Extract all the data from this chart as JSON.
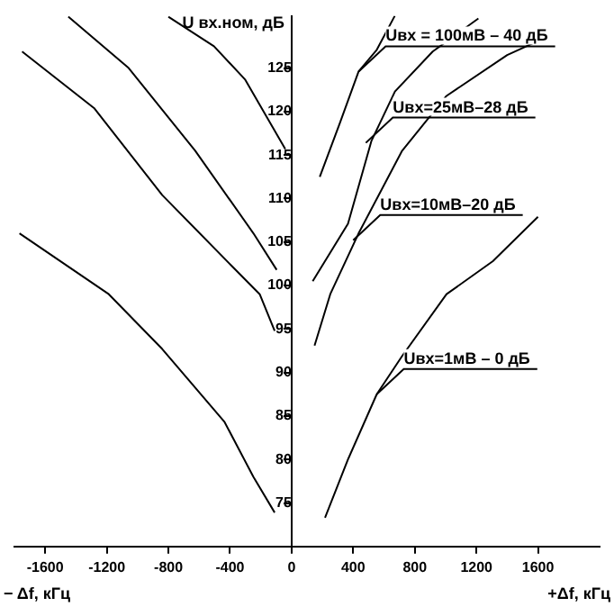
{
  "chart_data": {
    "type": "line",
    "ylabel": "U вх.ном, дБ",
    "xlim": [
      -1800,
      2000
    ],
    "ylim": [
      70,
      131
    ],
    "xticks": [
      -1600,
      -1200,
      -800,
      -400,
      0,
      400,
      800,
      1200,
      1600
    ],
    "yticks": [
      75,
      80,
      85,
      90,
      95,
      100,
      105,
      110,
      115,
      120,
      125
    ],
    "series": [
      {
        "color": "#000000",
        "x": [
          183,
          314,
          435,
          553,
          670
        ],
        "values": [
          112.5,
          118.7,
          124.6,
          127.1,
          131
        ]
      },
      {
        "color": "#000000",
        "x": [
          137,
          366,
          518,
          671,
          916,
          1213
        ],
        "values": [
          100.5,
          107.1,
          116.6,
          122.3,
          126.9,
          130.7
        ]
      },
      {
        "color": "#000000",
        "x": [
          149,
          251,
          435,
          718,
          1006,
          1400,
          1573
        ],
        "values": [
          93.1,
          99,
          106,
          115.5,
          121.8,
          126.5,
          127.9
        ]
      },
      {
        "color": "#000000",
        "x": [
          217,
          366,
          553,
          718,
          1006,
          1307,
          1600
        ],
        "values": [
          73.3,
          80,
          87.5,
          91.9,
          99,
          102.8,
          107.9
        ]
      },
      {
        "color": "#000000",
        "x": [
          -41,
          -303,
          -504,
          -800
        ],
        "values": [
          115.7,
          123.7,
          127.5,
          130.9
        ]
      },
      {
        "color": "#000000",
        "x": [
          -97,
          -248,
          -626,
          -1058,
          -1450
        ],
        "values": [
          101.8,
          106,
          115.5,
          125,
          130.9
        ]
      },
      {
        "color": "#000000",
        "x": [
          -110,
          -207,
          -386,
          -840,
          -1283,
          -1750
        ],
        "values": [
          94.8,
          99,
          102.2,
          110.4,
          120.4,
          126.9
        ]
      },
      {
        "color": "#000000",
        "x": [
          -110,
          -248,
          -435,
          -840,
          -1187,
          -1767
        ],
        "values": [
          73.9,
          78,
          84.3,
          92.7,
          99,
          106
        ]
      }
    ],
    "annotations": [
      {
        "text": "Uвх = 100мВ – 40 дБ",
        "x": 435,
        "y": 124.6
      },
      {
        "text": "Uвх=25мВ–28 дБ",
        "x": 482,
        "y": 116.4
      },
      {
        "text": "Uвх=10мВ–20 дБ",
        "x": 400,
        "y": 105.2
      },
      {
        "text": "Uвх=1мВ – 0 дБ",
        "x": 553,
        "y": 87.5
      },
      "− Δf, кГц",
      "+Δf, кГц"
    ],
    "grid": false,
    "legend": false,
    "marker": "none",
    "line_style": "solid"
  }
}
